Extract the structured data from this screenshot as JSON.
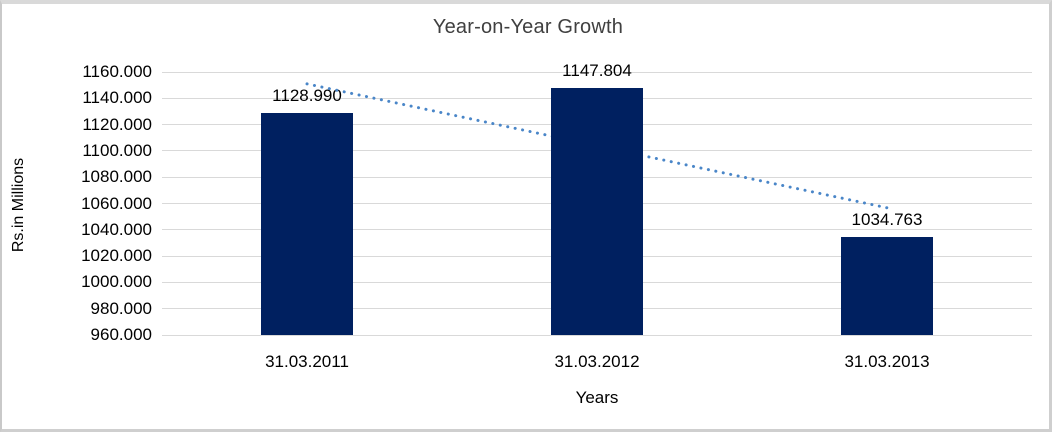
{
  "chart_data": {
    "type": "bar",
    "title": "Year-on-Year Growth",
    "xlabel": "Years",
    "ylabel": "Rs.in Millions",
    "categories": [
      "31.03.2011",
      "31.03.2012",
      "31.03.2013"
    ],
    "values": [
      1128.99,
      1147.804,
      1034.763
    ],
    "data_labels": [
      "1128.990",
      "1147.804",
      "1034.763"
    ],
    "ylim": [
      960,
      1160
    ],
    "ytick_step": 20,
    "ytick_labels": [
      "1160.000",
      "1140.000",
      "1120.000",
      "1100.000",
      "1080.000",
      "1060.000",
      "1040.000",
      "1020.000",
      "1000.000",
      "980.000",
      "960.000"
    ],
    "grid": true,
    "legend_position": "none",
    "trendline": {
      "type": "linear",
      "style": "dotted",
      "endpoint_values": [
        1150.966,
        1056.739
      ]
    },
    "colors": {
      "bar": "#002060",
      "trendline": "#4a86c8",
      "gridline": "#d9d9d9",
      "text": "#000000",
      "title_text": "#404040",
      "frame_border": "#cfcfcf",
      "background": "#ffffff"
    }
  }
}
